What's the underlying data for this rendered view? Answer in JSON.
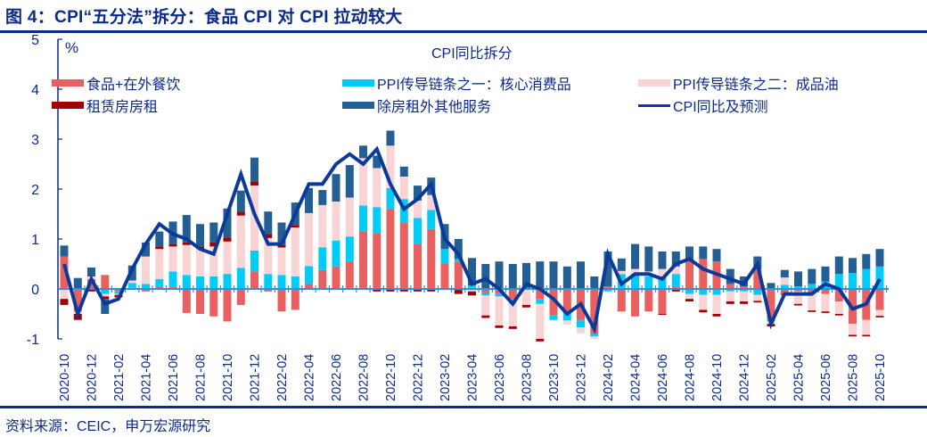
{
  "header": {
    "title": "图 4：CPI“五分法”拆分：食品 CPI 对 CPI 拉动较大"
  },
  "footer": {
    "source": "资料来源：CEIC，申万宏源研究"
  },
  "chart_data": {
    "type": "bar",
    "stacked": true,
    "title": "CPI同比拆分",
    "ylabel": "%",
    "xlabel": "",
    "ylim": [
      -1,
      5
    ],
    "yticks": [
      5,
      4,
      3,
      2,
      1,
      0,
      -1
    ],
    "grid": false,
    "legend_placement": "top",
    "x": [
      "2020-10",
      "2020-11",
      "2020-12",
      "2021-01",
      "2021-02",
      "2021-03",
      "2021-04",
      "2021-05",
      "2021-06",
      "2021-07",
      "2021-08",
      "2021-09",
      "2021-10",
      "2021-11",
      "2021-12",
      "2022-01",
      "2022-02",
      "2022-03",
      "2022-04",
      "2022-05",
      "2022-06",
      "2022-07",
      "2022-08",
      "2022-09",
      "2022-10",
      "2022-11",
      "2022-12",
      "2023-01",
      "2023-02",
      "2023-03",
      "2023-04",
      "2023-05",
      "2023-06",
      "2023-07",
      "2023-08",
      "2023-09",
      "2023-10",
      "2023-11",
      "2023-12",
      "2024-01",
      "2024-02",
      "2024-03",
      "2024-04",
      "2024-05",
      "2024-06",
      "2024-07",
      "2024-08",
      "2024-09",
      "2024-10",
      "2024-11",
      "2024-12",
      "2025-01",
      "2025-02",
      "2025-03",
      "2025-04",
      "2025-05",
      "2025-06",
      "2025-07",
      "2025-08",
      "2025-09",
      "2025-10"
    ],
    "xtick_labels": [
      "2020-10",
      "2020-12",
      "2021-02",
      "2021-04",
      "2021-06",
      "2021-08",
      "2021-10",
      "2021-12",
      "2022-02",
      "2022-04",
      "2022-06",
      "2022-08",
      "2022-10",
      "2022-12",
      "2023-02",
      "2023-04",
      "2023-06",
      "2023-08",
      "2023-10",
      "2023-12",
      "2024-02",
      "2024-04",
      "2024-06",
      "2024-08",
      "2024-10",
      "2024-12",
      "2025-02",
      "2025-04",
      "2025-06",
      "2025-08",
      "2025-10"
    ],
    "series": [
      {
        "name": "食品+在外餐饮",
        "kind": "bar",
        "color": "#e8605f",
        "values": [
          0.65,
          -0.45,
          0.2,
          0.28,
          -0.05,
          0.02,
          -0.05,
          0.05,
          0.05,
          -0.48,
          -0.5,
          -0.55,
          -0.65,
          -0.32,
          0.35,
          -0.05,
          -0.45,
          -0.42,
          0.1,
          0.38,
          0.45,
          0.55,
          1.15,
          1.12,
          1.6,
          1.32,
          0.9,
          1.2,
          0.5,
          0.55,
          0.02,
          -0.08,
          -0.1,
          -0.2,
          0.02,
          -0.2,
          -0.52,
          -0.48,
          -0.62,
          -0.9,
          0.05,
          -0.45,
          -0.55,
          -0.45,
          -0.5,
          0.05,
          0.55,
          0.6,
          0.55,
          0.1,
          0.05,
          0.4,
          -0.6,
          -0.1,
          -0.05,
          -0.08,
          -0.1,
          -0.25,
          -0.7,
          -0.62,
          -0.42
        ]
      },
      {
        "name": "PPI传导链条之一：核心消费品",
        "kind": "bar",
        "color": "#00ccf5",
        "values": [
          0.0,
          0.0,
          0.0,
          -0.1,
          -0.05,
          0.1,
          0.1,
          0.15,
          0.3,
          0.28,
          0.25,
          0.25,
          0.3,
          0.42,
          0.42,
          0.3,
          0.28,
          0.25,
          0.36,
          0.45,
          0.52,
          0.5,
          0.52,
          0.52,
          0.42,
          0.48,
          0.52,
          0.38,
          0.3,
          0.05,
          0.05,
          -0.05,
          -0.05,
          -0.05,
          -0.02,
          -0.1,
          -0.1,
          -0.15,
          -0.15,
          -0.05,
          -0.05,
          0.3,
          0.3,
          0.25,
          0.25,
          0.25,
          -0.1,
          -0.12,
          -0.12,
          -0.05,
          -0.05,
          -0.12,
          -0.05,
          0.08,
          0.05,
          0.1,
          0.15,
          0.3,
          0.32,
          0.4,
          0.45
        ]
      },
      {
        "name": "PPI传导链条之二：成品油",
        "kind": "bar",
        "color": "#f8d4d4",
        "values": [
          -0.2,
          -0.05,
          0.05,
          -0.05,
          -0.02,
          0.05,
          0.55,
          0.6,
          0.5,
          0.6,
          0.55,
          0.6,
          0.65,
          1.05,
          1.3,
          0.72,
          0.55,
          0.98,
          1.06,
          0.85,
          0.78,
          0.78,
          0.95,
          0.78,
          0.85,
          0.45,
          0.35,
          0.3,
          0.0,
          -0.02,
          -0.05,
          -0.4,
          -0.58,
          -0.5,
          -0.3,
          -0.7,
          0.0,
          -0.08,
          -0.12,
          -0.05,
          0.0,
          0.06,
          0.1,
          0.1,
          0.15,
          0.15,
          -0.1,
          -0.3,
          -0.38,
          -0.2,
          -0.2,
          -0.12,
          -0.05,
          0.15,
          -0.25,
          -0.35,
          -0.35,
          -0.25,
          -0.22,
          -0.3,
          -0.12
        ]
      },
      {
        "name": "租赁房房租",
        "kind": "bar",
        "color": "#a30000",
        "values": [
          -0.12,
          -0.12,
          -0.05,
          -0.05,
          -0.05,
          0.0,
          0.0,
          0.05,
          0.05,
          0.05,
          0.05,
          0.08,
          0.08,
          0.08,
          0.08,
          0.08,
          0.05,
          0.05,
          0.0,
          0.0,
          0.0,
          0.0,
          0.0,
          -0.05,
          -0.05,
          -0.05,
          -0.05,
          -0.05,
          -0.02,
          -0.08,
          -0.08,
          -0.05,
          -0.05,
          -0.05,
          -0.05,
          -0.05,
          0.0,
          0.0,
          0.0,
          0.0,
          0.0,
          0.0,
          0.0,
          0.0,
          -0.02,
          -0.05,
          -0.05,
          -0.05,
          -0.05,
          -0.05,
          -0.05,
          -0.03,
          -0.05,
          -0.02,
          -0.03,
          -0.03,
          -0.03,
          -0.03,
          -0.03,
          -0.03,
          -0.03
        ]
      },
      {
        "name": "除房租外其他服务",
        "kind": "bar",
        "color": "#245f94",
        "values": [
          0.22,
          0.22,
          0.18,
          -0.3,
          0.02,
          0.3,
          0.28,
          0.3,
          0.45,
          0.55,
          0.45,
          0.4,
          0.58,
          0.42,
          0.48,
          0.45,
          0.45,
          0.45,
          0.5,
          0.3,
          0.55,
          0.65,
          0.25,
          0.25,
          0.3,
          0.2,
          0.3,
          0.35,
          0.5,
          0.4,
          0.55,
          0.5,
          0.55,
          0.5,
          0.5,
          0.55,
          0.55,
          0.45,
          0.55,
          0.25,
          0.7,
          0.25,
          0.5,
          0.5,
          0.35,
          0.3,
          0.3,
          0.25,
          0.25,
          0.3,
          0.2,
          0.25,
          0.12,
          0.15,
          0.3,
          0.3,
          0.3,
          0.35,
          0.3,
          0.3,
          0.35
        ]
      },
      {
        "name": "CPI同比及预测",
        "kind": "line",
        "color": "#0a3a9a",
        "values": [
          0.5,
          -0.5,
          0.2,
          -0.3,
          -0.2,
          0.4,
          0.9,
          1.3,
          1.1,
          1.0,
          0.8,
          0.7,
          1.5,
          2.3,
          1.5,
          0.9,
          0.9,
          1.5,
          2.1,
          2.1,
          2.5,
          2.7,
          2.5,
          2.8,
          2.1,
          1.6,
          1.8,
          2.1,
          1.0,
          0.7,
          0.1,
          0.2,
          0.0,
          -0.3,
          0.1,
          0.0,
          -0.2,
          -0.5,
          -0.3,
          -0.8,
          0.7,
          0.1,
          0.3,
          0.3,
          0.2,
          0.5,
          0.6,
          0.4,
          0.3,
          0.2,
          0.1,
          0.5,
          -0.7,
          -0.1,
          -0.1,
          -0.1,
          0.1,
          0.0,
          -0.4,
          -0.3,
          0.2
        ]
      }
    ]
  }
}
